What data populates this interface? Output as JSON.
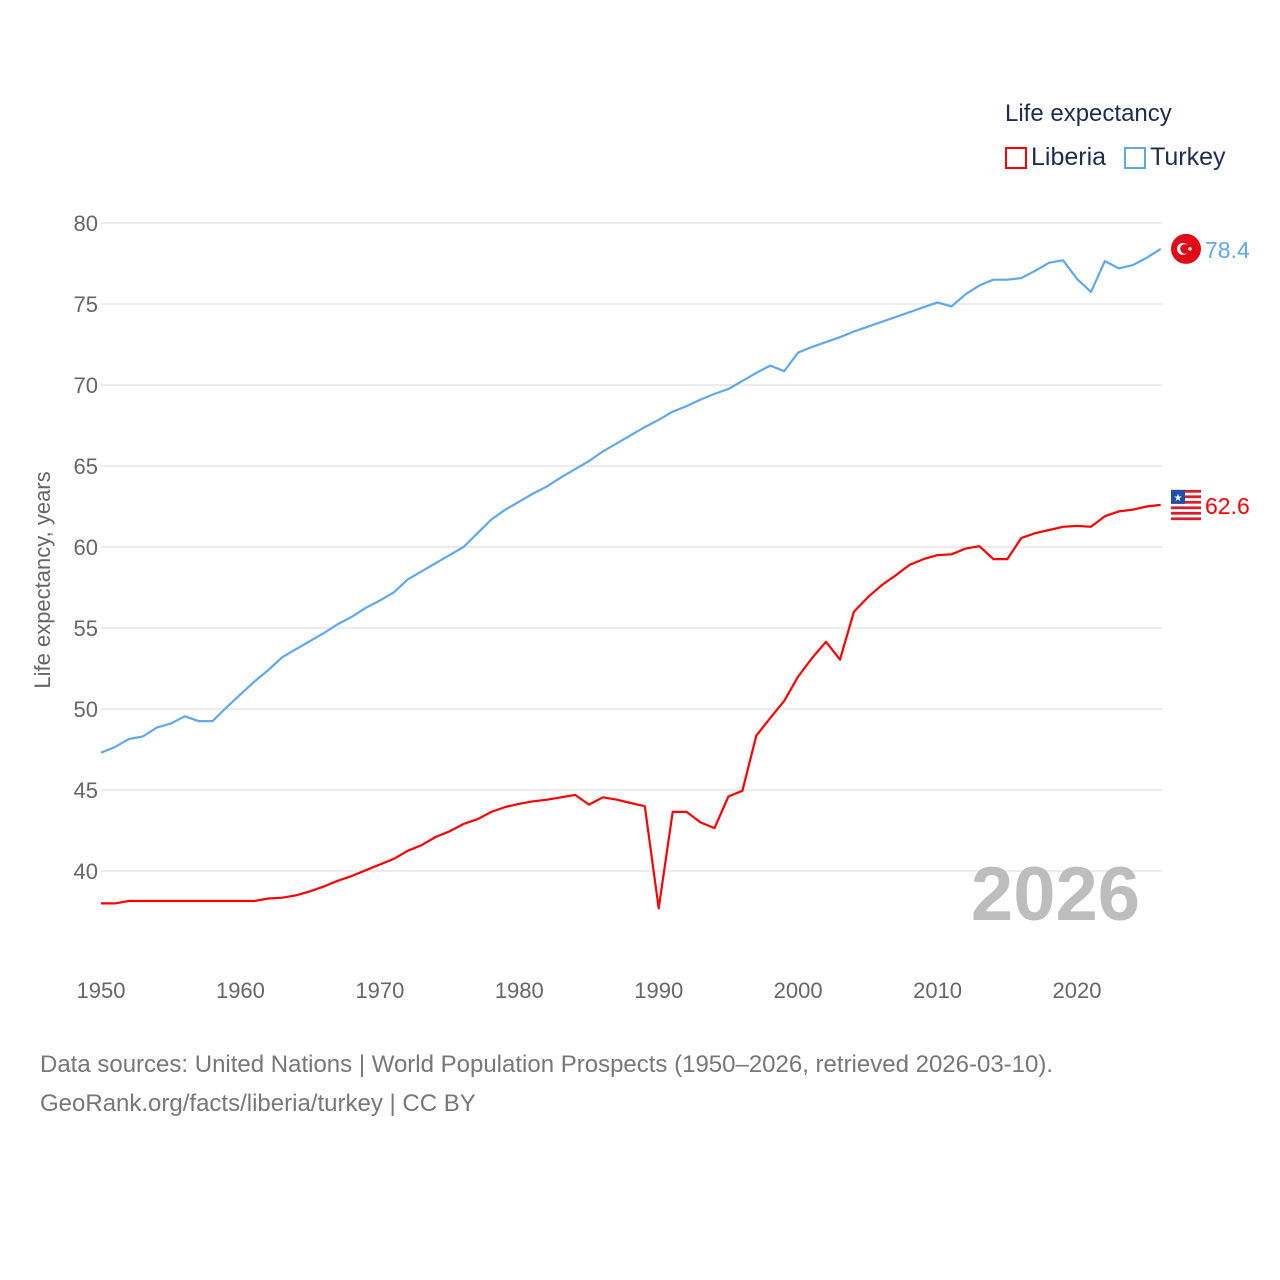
{
  "chart_data": {
    "type": "line",
    "title": "Life expectancy",
    "ylabel": "Life expectancy, years",
    "xlabel": "",
    "xlim": [
      1950,
      2026
    ],
    "ylim": [
      35,
      80
    ],
    "x_ticks": [
      "1950",
      "1960",
      "1970",
      "1980",
      "1990",
      "2000",
      "2010",
      "2020"
    ],
    "y_ticks": [
      "40",
      "45",
      "50",
      "55",
      "60",
      "65",
      "70",
      "75",
      "80"
    ],
    "grid": true,
    "legend_position": "top-right",
    "year_label": "2026",
    "x": [
      1950,
      1951,
      1952,
      1953,
      1954,
      1955,
      1956,
      1957,
      1958,
      1959,
      1960,
      1961,
      1962,
      1963,
      1964,
      1965,
      1966,
      1967,
      1968,
      1969,
      1970,
      1971,
      1972,
      1973,
      1974,
      1975,
      1976,
      1977,
      1978,
      1979,
      1980,
      1981,
      1982,
      1983,
      1984,
      1985,
      1986,
      1987,
      1988,
      1989,
      1990,
      1991,
      1992,
      1993,
      1994,
      1995,
      1996,
      1997,
      1998,
      1999,
      2000,
      2001,
      2002,
      2003,
      2004,
      2005,
      2006,
      2007,
      2008,
      2009,
      2010,
      2011,
      2012,
      2013,
      2014,
      2015,
      2016,
      2017,
      2018,
      2019,
      2020,
      2021,
      2022,
      2023,
      2024,
      2025,
      2026
    ],
    "series": [
      {
        "name": "Liberia",
        "color": "#ff0000",
        "end_label": "62.6",
        "values": [
          38.0,
          38.0,
          38.15,
          38.15,
          38.15,
          38.15,
          38.15,
          38.15,
          38.15,
          38.15,
          38.15,
          38.15,
          38.3,
          38.35,
          38.5,
          38.75,
          39.05,
          39.4,
          39.7,
          40.05,
          40.4,
          40.75,
          41.25,
          41.6,
          42.1,
          42.45,
          42.9,
          43.2,
          43.65,
          43.95,
          44.15,
          44.3,
          44.4,
          44.55,
          44.7,
          44.1,
          44.55,
          44.4,
          44.2,
          44.0,
          37.7,
          43.65,
          43.65,
          43.0,
          42.65,
          44.6,
          44.95,
          48.35,
          49.45,
          50.5,
          52.0,
          53.15,
          54.15,
          53.05,
          56.0,
          56.9,
          57.65,
          58.25,
          58.9,
          59.25,
          59.5,
          59.55,
          59.9,
          60.05,
          59.25,
          59.25,
          60.55,
          60.85,
          61.05,
          61.25,
          61.3,
          61.25,
          61.9,
          62.2,
          62.3,
          62.5,
          62.6
        ]
      },
      {
        "name": "Turkey",
        "color": "#5fa8ec",
        "end_label": "78.4",
        "values": [
          47.3,
          47.65,
          48.15,
          48.3,
          48.85,
          49.1,
          49.55,
          49.25,
          49.25,
          50.1,
          50.9,
          51.7,
          52.4,
          53.2,
          53.7,
          54.2,
          54.7,
          55.25,
          55.7,
          56.25,
          56.7,
          57.2,
          58.0,
          58.5,
          59.0,
          59.5,
          60.0,
          60.85,
          61.7,
          62.3,
          62.8,
          63.3,
          63.75,
          64.3,
          64.8,
          65.3,
          65.9,
          66.4,
          66.9,
          67.4,
          67.85,
          68.35,
          68.7,
          69.1,
          69.45,
          69.75,
          70.25,
          70.75,
          71.2,
          70.85,
          72.0,
          72.35,
          72.65,
          72.95,
          73.3,
          73.6,
          73.9,
          74.2,
          74.5,
          74.8,
          75.1,
          74.85,
          75.6,
          76.15,
          76.5,
          76.5,
          76.6,
          77.05,
          77.55,
          77.7,
          76.55,
          75.75,
          77.65,
          77.2,
          77.4,
          77.85,
          78.4
        ]
      }
    ]
  },
  "footer": {
    "source_line": "Data sources: United Nations | World Population Prospects (1950–2026, retrieved 2026-03-10).",
    "link_line": "GeoRank.org/facts/liberia/turkey | CC BY"
  }
}
